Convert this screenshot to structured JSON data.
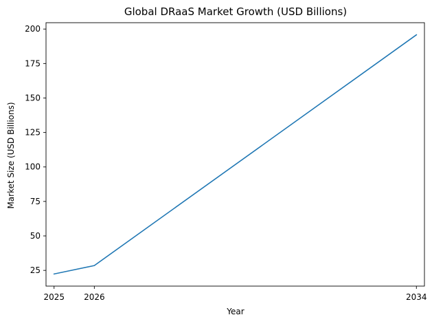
{
  "chart_data": {
    "type": "line",
    "title": "Global DRaaS Market Growth (USD Billions)",
    "xlabel": "Year",
    "ylabel": "Market Size (USD Billions)",
    "x_ticks": [
      "2025",
      "2026",
      "2034"
    ],
    "y_ticks": [
      "25",
      "50",
      "75",
      "100",
      "125",
      "150",
      "175",
      "200"
    ],
    "xlim": [
      2024.8,
      2034.2
    ],
    "ylim": [
      13.6,
      204.6
    ],
    "grid": false,
    "legend": "none",
    "series": [
      {
        "color": "#1f77b4",
        "x": [
          2025,
          2026,
          2034
        ],
        "y": [
          22.4,
          28.5,
          195.8
        ]
      }
    ]
  }
}
